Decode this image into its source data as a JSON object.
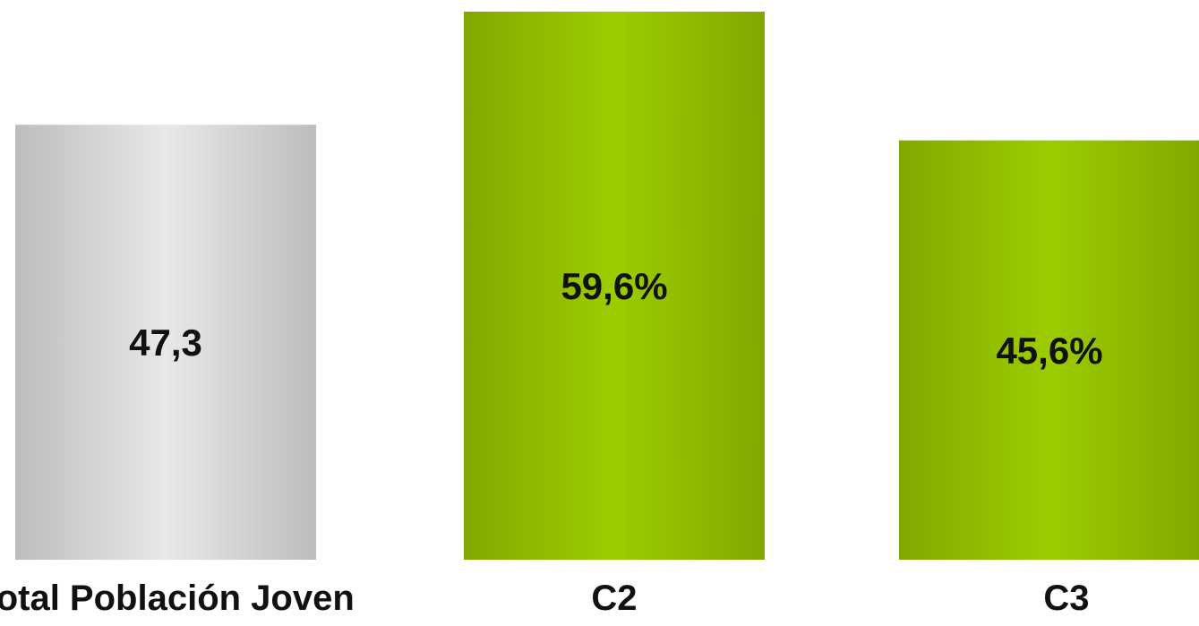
{
  "chart_data": {
    "type": "bar",
    "categories": [
      "Total Población Joven",
      "C2",
      "C3"
    ],
    "values": [
      47.3,
      59.6,
      45.6
    ],
    "data_labels": [
      "47,3",
      "59,6%",
      "45,6%"
    ],
    "colors": {
      "gray": {
        "edge": "#BDBDBD",
        "center": "#E8E8E8"
      },
      "green": {
        "edge": "#82A800",
        "center": "#9CCC00"
      }
    },
    "bar_color_keys": [
      "gray",
      "green",
      "green"
    ],
    "title": "",
    "xlabel": "",
    "ylabel": "",
    "ylim": [
      0,
      62
    ],
    "grid": false,
    "legend": "none"
  }
}
